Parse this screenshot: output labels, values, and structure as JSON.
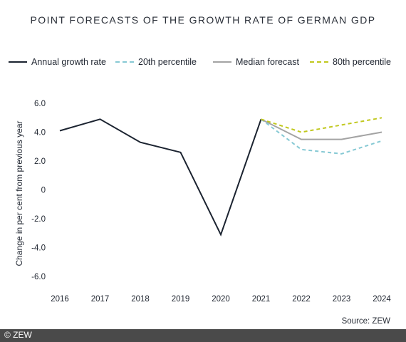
{
  "chart_data": {
    "type": "line",
    "title": "POINT FORECASTS OF THE GROWTH RATE OF GERMAN GDP",
    "ylabel": "Change in per cent from previous year",
    "xlabel": "",
    "x": [
      "2016",
      "2017",
      "2018",
      "2019",
      "2020",
      "2021",
      "2022",
      "2023",
      "2024"
    ],
    "ylim": [
      -6.0,
      6.0
    ],
    "yticks": [
      "6.0",
      "4.0",
      "2.0",
      "0",
      "-2.0",
      "-4.0",
      "-6.0"
    ],
    "ytick_values": [
      6,
      4,
      2,
      0,
      -2,
      -4,
      -6
    ],
    "series": [
      {
        "name": "Annual growth rate",
        "x": [
          "2016",
          "2017",
          "2018",
          "2019",
          "2020",
          "2021"
        ],
        "values": [
          4.1,
          4.9,
          3.3,
          2.6,
          -3.1,
          4.9
        ],
        "color": "#1b2330",
        "style": "solid"
      },
      {
        "name": "20th percentile",
        "x": [
          "2021",
          "2022",
          "2023",
          "2024"
        ],
        "values": [
          4.9,
          2.8,
          2.5,
          3.4
        ],
        "color": "#86c9d4",
        "style": "dashed"
      },
      {
        "name": "Median forecast",
        "x": [
          "2021",
          "2022",
          "2023",
          "2024"
        ],
        "values": [
          4.9,
          3.5,
          3.5,
          4.0
        ],
        "color": "#a3a3a3",
        "style": "solid"
      },
      {
        "name": "80th percentile",
        "x": [
          "2021",
          "2022",
          "2023",
          "2024"
        ],
        "values": [
          4.9,
          4.0,
          4.5,
          5.0
        ],
        "color": "#c1c81e",
        "style": "dashed"
      }
    ],
    "grid": false,
    "legend_position": "top"
  },
  "source": "Source:  ZEW",
  "copyright": "© ZEW"
}
